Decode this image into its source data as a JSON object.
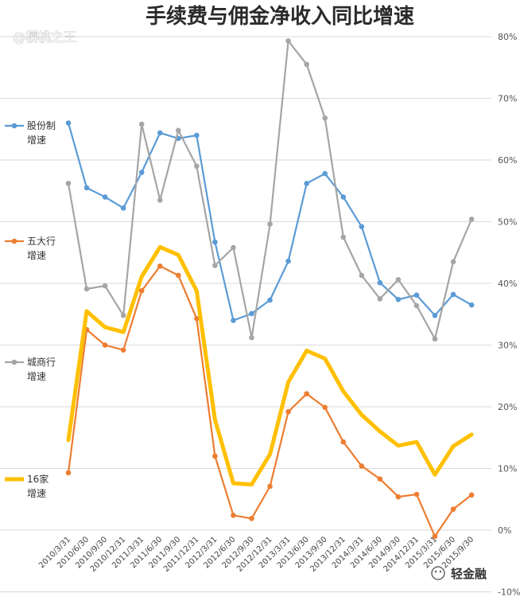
{
  "chart_data": {
    "type": "line",
    "title": "手续费与佣金净收入同比增速",
    "watermark": "@樱桃之王",
    "brand": "轻金融",
    "categories": [
      "2010/3/31",
      "2010/6/30",
      "2010/9/30",
      "2010/12/31",
      "2011/3/31",
      "2011/6/30",
      "2011/9/30",
      "2011/12/31",
      "2012/3/31",
      "2012/6/30",
      "2012/9/30",
      "2012/12/31",
      "2013/3/31",
      "2013/6/30",
      "2013/9/30",
      "2013/12/31",
      "2014/3/31",
      "2014/6/30",
      "2014/9/30",
      "2014/12/31",
      "2015/3/31",
      "2015/6/30",
      "2015/9/30"
    ],
    "y_ticks": [
      "-10%",
      "0%",
      "10%",
      "20%",
      "30%",
      "40%",
      "50%",
      "60%",
      "70%",
      "80%"
    ],
    "y_tick_values": [
      -10,
      0,
      10,
      20,
      30,
      40,
      50,
      60,
      70,
      80
    ],
    "ylim": [
      -10,
      80
    ],
    "series": [
      {
        "name": "股份制",
        "name2": "增速",
        "color": "#5b9bd5",
        "width": 2.2,
        "marker": true,
        "values": [
          66,
          55.5,
          54,
          52.2,
          58,
          64.4,
          63.5,
          64,
          46.7,
          34,
          35.1,
          37.3,
          43.6,
          56.2,
          57.8,
          54,
          49.2,
          40.1,
          37.4,
          38.1,
          34.8,
          38.2,
          36.5
        ]
      },
      {
        "name": "五大行",
        "name2": "增速",
        "color": "#ed7d31",
        "width": 2.2,
        "marker": true,
        "values": [
          9.3,
          32.5,
          30,
          29.2,
          38.8,
          42.8,
          41.3,
          34.3,
          12,
          2.4,
          1.9,
          7.1,
          19.2,
          22.1,
          19.9,
          14.3,
          10.4,
          8.3,
          5.4,
          5.8,
          -1,
          3.4,
          5.7
        ]
      },
      {
        "name": "城商行",
        "name2": "增速",
        "color": "#a5a5a5",
        "width": 2.2,
        "marker": true,
        "values": [
          56.2,
          39.1,
          39.6,
          34.8,
          65.8,
          53.5,
          64.8,
          59,
          42.9,
          45.8,
          31.2,
          49.6,
          79.3,
          75.5,
          66.8,
          47.5,
          41.3,
          37.5,
          40.6,
          36.4,
          31,
          43.5,
          50.4
        ]
      },
      {
        "name": "16家",
        "name2": "增速",
        "color": "#ffc000",
        "width": 5,
        "marker": false,
        "values": [
          14.6,
          35.5,
          32.9,
          32.1,
          41.1,
          45.9,
          44.6,
          38.8,
          17.9,
          7.6,
          7.4,
          12.3,
          24,
          29.1,
          27.8,
          22.5,
          18.7,
          16,
          13.7,
          14.3,
          9,
          13.6,
          15.5
        ]
      }
    ]
  }
}
